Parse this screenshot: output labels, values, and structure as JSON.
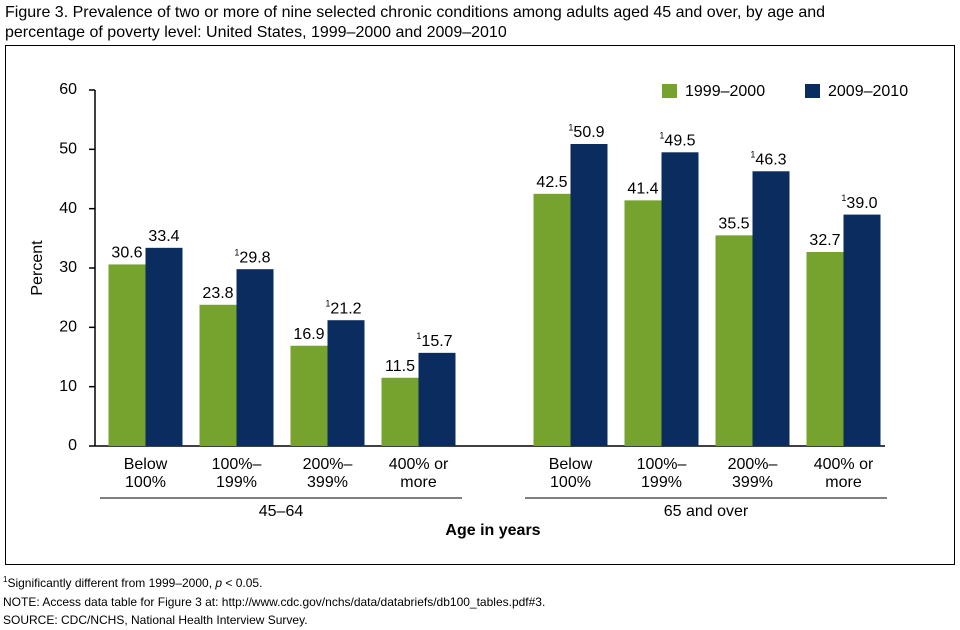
{
  "chart_data": {
    "type": "bar",
    "title": [
      "Figure 3. Prevalence of two or more of nine selected chronic conditions among adults aged 45 and over, by age and",
      "percentage of poverty level: United States, 1999–2000 and 2009–2010"
    ],
    "y_label": "Percent",
    "x_label": "Age in years",
    "groups": [
      "45–64",
      "65 and over"
    ],
    "categories": [
      [
        "Below",
        "100%"
      ],
      [
        "100%–",
        "199%"
      ],
      [
        "200%–",
        "399%"
      ],
      [
        "400% or",
        "more"
      ],
      [
        "Below",
        "100%"
      ],
      [
        "100%–",
        "199%"
      ],
      [
        "200%–",
        "399%"
      ],
      [
        "400% or",
        "more"
      ]
    ],
    "series": [
      {
        "name": "1999–2000",
        "color": "#76a22e",
        "values": [
          30.6,
          23.8,
          16.9,
          11.5,
          42.5,
          41.4,
          35.5,
          32.7
        ]
      },
      {
        "name": "2009–2010",
        "color": "#0b2c5f",
        "values": [
          33.4,
          29.8,
          21.2,
          15.7,
          50.9,
          49.5,
          46.3,
          39.0
        ],
        "value_labels": [
          "33.4",
          "29.8",
          "21.2",
          "15.7",
          "50.9",
          "49.5",
          "46.3",
          "39.0"
        ],
        "footnote_marks": [
          null,
          "1",
          "1",
          "1",
          "1",
          "1",
          "1",
          "1"
        ]
      }
    ],
    "ylim": [
      0,
      60
    ],
    "yticks": [
      0,
      10,
      20,
      30,
      40,
      50,
      60
    ],
    "legend": "top-right",
    "notes": {
      "footnote_mark": "1",
      "footnote_before": "Significantly different from 1999–2000, ",
      "footnote_italic": "p",
      "footnote_after": " < 0.05.",
      "note": "NOTE: Access data table for Figure 3 at: http://www.cdc.gov/nchs/data/databriefs/db100_tables.pdf#3.",
      "source": "SOURCE: CDC/NCHS, National Health Interview Survey."
    }
  }
}
